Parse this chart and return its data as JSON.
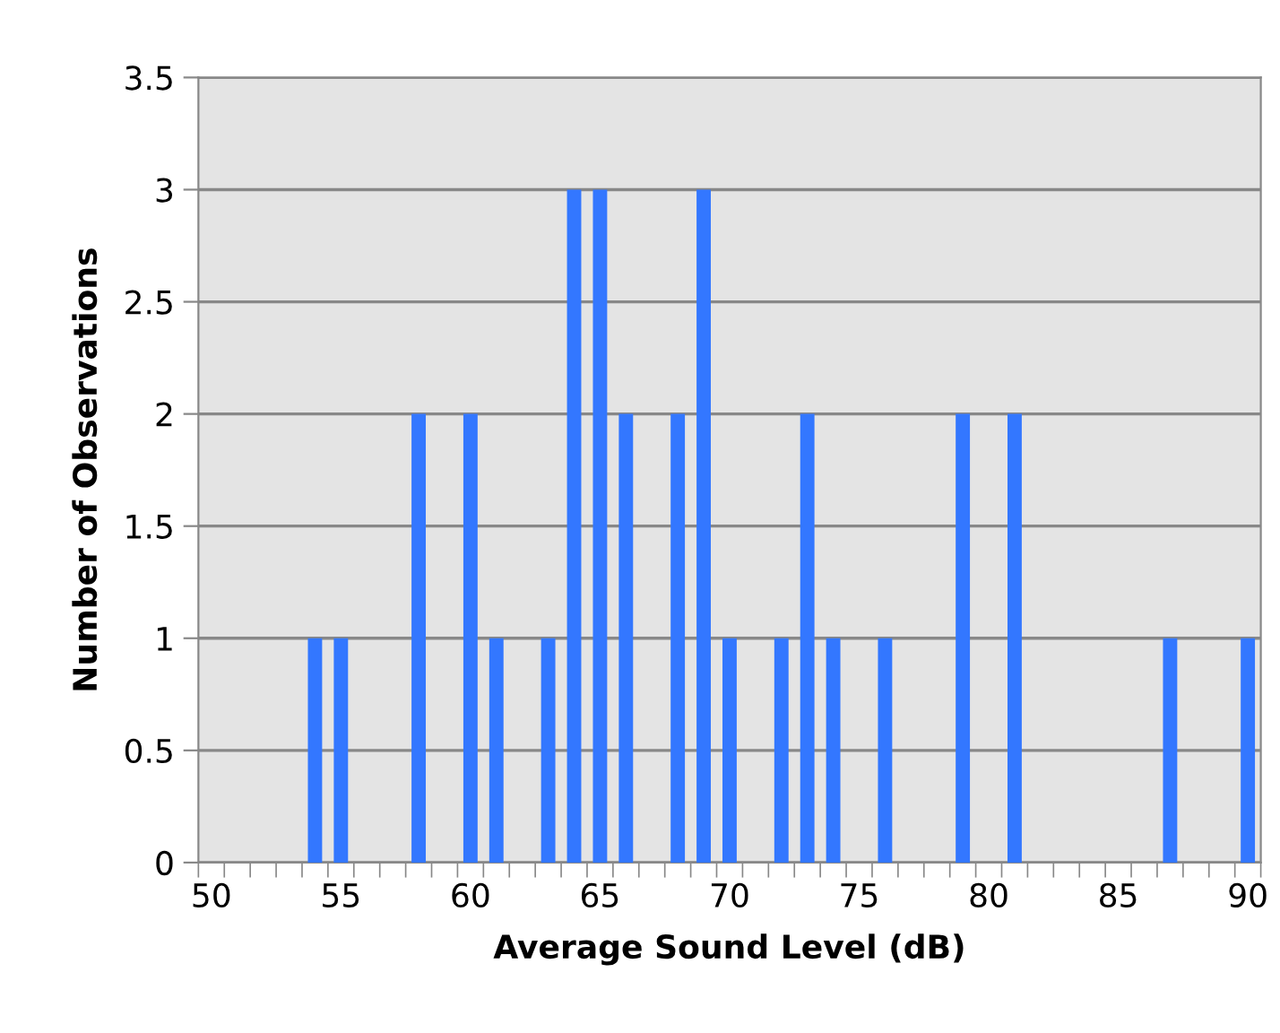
{
  "chart_data": {
    "type": "bar",
    "xlabel": "Average Sound Level (dB)",
    "ylabel": "Number of Observations",
    "categories": [
      "50",
      null,
      null,
      null,
      null,
      "55",
      null,
      null,
      null,
      null,
      "60",
      null,
      null,
      null,
      null,
      "65",
      null,
      null,
      null,
      null,
      "70",
      null,
      null,
      null,
      null,
      "75",
      null,
      null,
      null,
      null,
      "80",
      null,
      null,
      null,
      null,
      "85",
      null,
      null,
      null,
      null,
      "90"
    ],
    "values": [
      0,
      0,
      0,
      0,
      1,
      1,
      0,
      0,
      2,
      0,
      2,
      1,
      0,
      1,
      3,
      3,
      2,
      0,
      2,
      3,
      1,
      0,
      1,
      2,
      1,
      0,
      1,
      0,
      0,
      2,
      0,
      2,
      0,
      0,
      0,
      0,
      0,
      1,
      0,
      0,
      1
    ],
    "color": "#3377ff",
    "ylim": [
      0,
      3.5
    ],
    "yticks": [
      0,
      0.5,
      1,
      1.5,
      2,
      2.5,
      3,
      3.5
    ],
    "grid": "y"
  }
}
